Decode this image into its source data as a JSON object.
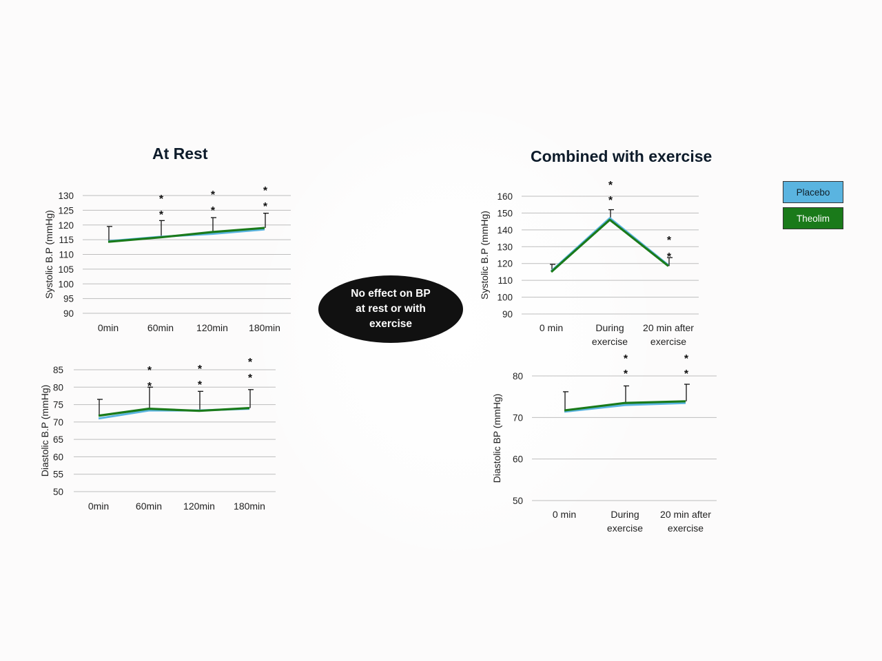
{
  "colors": {
    "placebo": "#5ab4e0",
    "theolim": "#1a7a1a",
    "grid": "#bdbdbd",
    "text": "#1f1f1f"
  },
  "titles": {
    "rest": "At Rest",
    "exercise": "Combined with exercise"
  },
  "bubble": {
    "text": "No effect on BP at rest or with exercise"
  },
  "legend": [
    {
      "name": "Placebo",
      "fill": "#5ab4e0",
      "text_color": "#10202a"
    },
    {
      "name": "Theolim",
      "fill": "#1a7a1a",
      "text_color": "#ffffff"
    }
  ],
  "chart_data": [
    {
      "type": "line",
      "panel": "At Rest",
      "ylabel": "Systolic B.P (mmHg)",
      "ylim": [
        90,
        130
      ],
      "yticks": [
        90,
        95,
        100,
        105,
        110,
        115,
        120,
        125,
        130
      ],
      "categories": [
        "0min",
        "60min",
        "120min",
        "180min"
      ],
      "series": [
        {
          "name": "Placebo",
          "values": [
            114.5,
            116,
            117,
            118.5
          ]
        },
        {
          "name": "Theolim",
          "values": [
            114.3,
            115.8,
            117.6,
            119
          ]
        }
      ],
      "error_tops": [
        119.5,
        121.5,
        122.5,
        124
      ],
      "annotations": [
        "",
        "* *",
        "* *",
        "* *"
      ],
      "grid": true
    },
    {
      "type": "line",
      "panel": "At Rest",
      "ylabel": "Diastolic B.P (mmHg)",
      "ylim": [
        50,
        85
      ],
      "yticks": [
        50,
        55,
        60,
        65,
        70,
        75,
        80,
        85
      ],
      "categories": [
        "0min",
        "60min",
        "120min",
        "180min"
      ],
      "series": [
        {
          "name": "Placebo",
          "values": [
            71,
            73.3,
            73.3,
            73.8
          ]
        },
        {
          "name": "Theolim",
          "values": [
            71.8,
            73.8,
            73.2,
            74
          ]
        }
      ],
      "error_tops": [
        76.5,
        80,
        78.8,
        79.3
      ],
      "annotations": [
        "",
        "* *",
        "* *",
        "* *"
      ],
      "grid": true
    },
    {
      "type": "line",
      "panel": "Combined with exercise",
      "ylabel": "Systolic B.P (mmHg)",
      "ylim": [
        90,
        160
      ],
      "yticks": [
        90,
        100,
        110,
        120,
        130,
        140,
        150,
        160
      ],
      "categories": [
        "0 min",
        "During exercise",
        "20 min after exercise"
      ],
      "series": [
        {
          "name": "Placebo",
          "values": [
            115.5,
            147,
            119
          ]
        },
        {
          "name": "Theolim",
          "values": [
            115,
            146,
            118.5
          ]
        }
      ],
      "error_tops": [
        119.5,
        152,
        123.5
      ],
      "annotations": [
        "",
        "* *",
        "* *"
      ],
      "grid": true
    },
    {
      "type": "line",
      "panel": "Combined with exercise",
      "ylabel": "Diastolic BP (mmHg)",
      "ylim": [
        50,
        80
      ],
      "yticks": [
        50,
        60,
        70,
        80
      ],
      "categories": [
        "0 min",
        "During exercise",
        "20 min after exercise"
      ],
      "series": [
        {
          "name": "Placebo",
          "values": [
            71.4,
            73,
            73.5
          ]
        },
        {
          "name": "Theolim",
          "values": [
            71.7,
            73.5,
            73.9
          ]
        }
      ],
      "error_tops": [
        76.2,
        77.6,
        78
      ],
      "annotations": [
        "",
        "* *",
        "* *"
      ],
      "grid": true
    }
  ]
}
